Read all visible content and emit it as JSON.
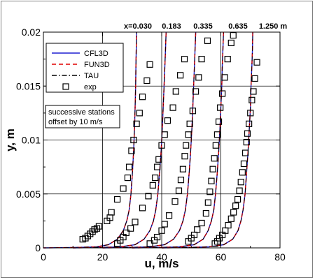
{
  "chart_data": {
    "type": "line",
    "title": "",
    "xlabel": "u, m/s",
    "ylabel": "y, m",
    "xlim": [
      0,
      80
    ],
    "ylim": [
      0,
      0.02
    ],
    "x_ticks": [
      "0",
      "20",
      "40",
      "60",
      "80"
    ],
    "y_ticks": [
      "0",
      "0.005",
      "0.01",
      "0.015",
      "0.02"
    ],
    "grid": true,
    "legend_position": "upper-left",
    "station_labels": [
      "x=0.030",
      "0.183",
      "0.335",
      "0.635",
      "1.250 m"
    ],
    "annotation_lines": [
      "successive stations",
      "offset by 10 m/s"
    ],
    "station_offsets": [
      0,
      10,
      20,
      30,
      40
    ],
    "series": [
      {
        "name": "CFL3D",
        "style": "solid",
        "color": "#1f1fd0"
      },
      {
        "name": "FUN3D",
        "style": "dashed",
        "color": "#e00000"
      },
      {
        "name": "TAU",
        "style": "dashdot",
        "color": "#000000"
      },
      {
        "name": "exp",
        "style": "markers",
        "marker": "square",
        "color": "#000000"
      }
    ],
    "cfd_profiles": [
      {
        "station": "x=0.030",
        "points": [
          [
            0,
            0
          ],
          [
            10,
            3e-05
          ],
          [
            18,
            0.0001
          ],
          [
            22,
            0.0003
          ],
          [
            25,
            0.0008
          ],
          [
            27,
            0.0016
          ],
          [
            28.2,
            0.0025
          ],
          [
            29,
            0.0035
          ],
          [
            29.6,
            0.005
          ],
          [
            30.1,
            0.007
          ],
          [
            30.5,
            0.009
          ],
          [
            30.8,
            0.011
          ],
          [
            31,
            0.013
          ],
          [
            31.2,
            0.015
          ],
          [
            31.3,
            0.017
          ],
          [
            31.4,
            0.0185
          ],
          [
            31.5,
            0.02
          ]
        ]
      },
      {
        "station": "0.183",
        "points": [
          [
            10,
            0
          ],
          [
            18,
            3e-05
          ],
          [
            26,
            0.0001
          ],
          [
            31,
            0.0003
          ],
          [
            34,
            0.0008
          ],
          [
            36,
            0.0016
          ],
          [
            37.2,
            0.0025
          ],
          [
            38,
            0.0035
          ],
          [
            38.7,
            0.005
          ],
          [
            39.3,
            0.007
          ],
          [
            39.8,
            0.009
          ],
          [
            40.2,
            0.011
          ],
          [
            40.5,
            0.013
          ],
          [
            40.8,
            0.015
          ],
          [
            41.1,
            0.017
          ],
          [
            41.3,
            0.0185
          ],
          [
            41.5,
            0.02
          ]
        ]
      },
      {
        "station": "0.335",
        "points": [
          [
            20,
            0
          ],
          [
            28,
            3e-05
          ],
          [
            36,
            0.0001
          ],
          [
            41,
            0.0003
          ],
          [
            44,
            0.0008
          ],
          [
            46,
            0.0016
          ],
          [
            47.2,
            0.0025
          ],
          [
            48,
            0.0035
          ],
          [
            48.7,
            0.005
          ],
          [
            49.3,
            0.007
          ],
          [
            49.8,
            0.009
          ],
          [
            50.2,
            0.011
          ],
          [
            50.5,
            0.013
          ],
          [
            50.8,
            0.015
          ],
          [
            51.1,
            0.017
          ],
          [
            51.3,
            0.0185
          ],
          [
            51.5,
            0.02
          ]
        ]
      },
      {
        "station": "0.635",
        "points": [
          [
            30,
            0
          ],
          [
            38,
            3e-05
          ],
          [
            46,
            0.0001
          ],
          [
            51,
            0.0003
          ],
          [
            54,
            0.0008
          ],
          [
            55.7,
            0.0016
          ],
          [
            56.8,
            0.0025
          ],
          [
            57.6,
            0.0035
          ],
          [
            58.2,
            0.005
          ],
          [
            58.8,
            0.007
          ],
          [
            59.3,
            0.009
          ],
          [
            59.7,
            0.011
          ],
          [
            60,
            0.013
          ],
          [
            60.3,
            0.015
          ],
          [
            60.5,
            0.017
          ],
          [
            60.7,
            0.0185
          ],
          [
            60.9,
            0.02
          ]
        ]
      },
      {
        "station": "1.250 m",
        "points": [
          [
            40,
            0
          ],
          [
            48,
            3e-05
          ],
          [
            56,
            0.0001
          ],
          [
            61,
            0.0003
          ],
          [
            64,
            0.0008
          ],
          [
            65.8,
            0.0016
          ],
          [
            66.8,
            0.0025
          ],
          [
            67.5,
            0.0035
          ],
          [
            68.2,
            0.005
          ],
          [
            68.7,
            0.007
          ],
          [
            69.2,
            0.009
          ],
          [
            69.6,
            0.011
          ],
          [
            70,
            0.013
          ],
          [
            70.2,
            0.015
          ],
          [
            70.5,
            0.017
          ],
          [
            70.7,
            0.0185
          ],
          [
            70.8,
            0.02
          ]
        ]
      }
    ],
    "exp_points": [
      [
        13.3,
        0.0008
      ],
      [
        14.2,
        0.0009
      ],
      [
        15,
        0.0011
      ],
      [
        15.8,
        0.0013
      ],
      [
        16.6,
        0.0015
      ],
      [
        17.3,
        0.0017
      ],
      [
        18.1,
        0.0018
      ],
      [
        18.8,
        0.002
      ],
      [
        21.5,
        0.0025
      ],
      [
        22.5,
        0.0028
      ],
      [
        23,
        0.0033
      ],
      [
        25,
        0.0045
      ],
      [
        27,
        0.0055
      ],
      [
        28.5,
        0.0065
      ],
      [
        29,
        0.0075
      ],
      [
        29.8,
        0.009
      ],
      [
        30.5,
        0.01
      ],
      [
        31.5,
        0.0115
      ],
      [
        32.5,
        0.0125
      ],
      [
        33.5,
        0.014
      ],
      [
        35,
        0.0155
      ],
      [
        36,
        0.017
      ],
      [
        25,
        0.0004
      ],
      [
        26,
        0.0007
      ],
      [
        27,
        0.001
      ],
      [
        28,
        0.0014
      ],
      [
        29.5,
        0.0018
      ],
      [
        31,
        0.0024
      ],
      [
        33.5,
        0.0037
      ],
      [
        35.5,
        0.0048
      ],
      [
        37,
        0.0058
      ],
      [
        37.8,
        0.0065
      ],
      [
        38.5,
        0.0075
      ],
      [
        39,
        0.0082
      ],
      [
        40,
        0.0095
      ],
      [
        41,
        0.0105
      ],
      [
        42,
        0.0118
      ],
      [
        43.8,
        0.013
      ],
      [
        44.8,
        0.0145
      ],
      [
        46.3,
        0.016
      ],
      [
        47.7,
        0.0175
      ],
      [
        36,
        0.0004
      ],
      [
        37.5,
        0.0007
      ],
      [
        38.5,
        0.001
      ],
      [
        40,
        0.0016
      ],
      [
        41,
        0.0022
      ],
      [
        42.5,
        0.003
      ],
      [
        44.5,
        0.0043
      ],
      [
        45.8,
        0.0053
      ],
      [
        46.5,
        0.0063
      ],
      [
        47.2,
        0.0073
      ],
      [
        47.8,
        0.0085
      ],
      [
        48.2,
        0.0095
      ],
      [
        49,
        0.0105
      ],
      [
        49.5,
        0.0115
      ],
      [
        50.5,
        0.0127
      ],
      [
        51.5,
        0.0145
      ],
      [
        52.5,
        0.0158
      ],
      [
        53.5,
        0.0175
      ],
      [
        55.5,
        0.0192
      ],
      [
        49,
        0.0006
      ],
      [
        50,
        0.0009
      ],
      [
        51,
        0.0012
      ],
      [
        52,
        0.0017
      ],
      [
        53.5,
        0.0023
      ],
      [
        55,
        0.0032
      ],
      [
        55.7,
        0.0042
      ],
      [
        56.3,
        0.0052
      ],
      [
        56.8,
        0.0062
      ],
      [
        57.3,
        0.0073
      ],
      [
        57.8,
        0.0083
      ],
      [
        58.3,
        0.0095
      ],
      [
        58.8,
        0.0105
      ],
      [
        59.3,
        0.0117
      ],
      [
        59.8,
        0.013
      ],
      [
        60.5,
        0.0143
      ],
      [
        61.3,
        0.0158
      ],
      [
        62.3,
        0.0175
      ],
      [
        63.5,
        0.019
      ],
      [
        64.2,
        0.0197
      ],
      [
        58,
        0.0004
      ],
      [
        58.8,
        0.0006
      ],
      [
        59.5,
        0.0009
      ],
      [
        60.5,
        0.0012
      ],
      [
        61.5,
        0.0016
      ],
      [
        62.5,
        0.0021
      ],
      [
        63.5,
        0.0027
      ],
      [
        64.3,
        0.0033
      ],
      [
        65,
        0.0039
      ],
      [
        65.7,
        0.0045
      ],
      [
        66.3,
        0.0053
      ],
      [
        66.8,
        0.0061
      ],
      [
        67.3,
        0.007
      ],
      [
        67.8,
        0.0078
      ],
      [
        68.3,
        0.0088
      ],
      [
        68.7,
        0.0098
      ],
      [
        69,
        0.0106
      ],
      [
        69.5,
        0.0115
      ],
      [
        70,
        0.0125
      ],
      [
        70.5,
        0.0137
      ],
      [
        71,
        0.0145
      ],
      [
        71.5,
        0.0157
      ],
      [
        72.2,
        0.0172
      ]
    ]
  }
}
